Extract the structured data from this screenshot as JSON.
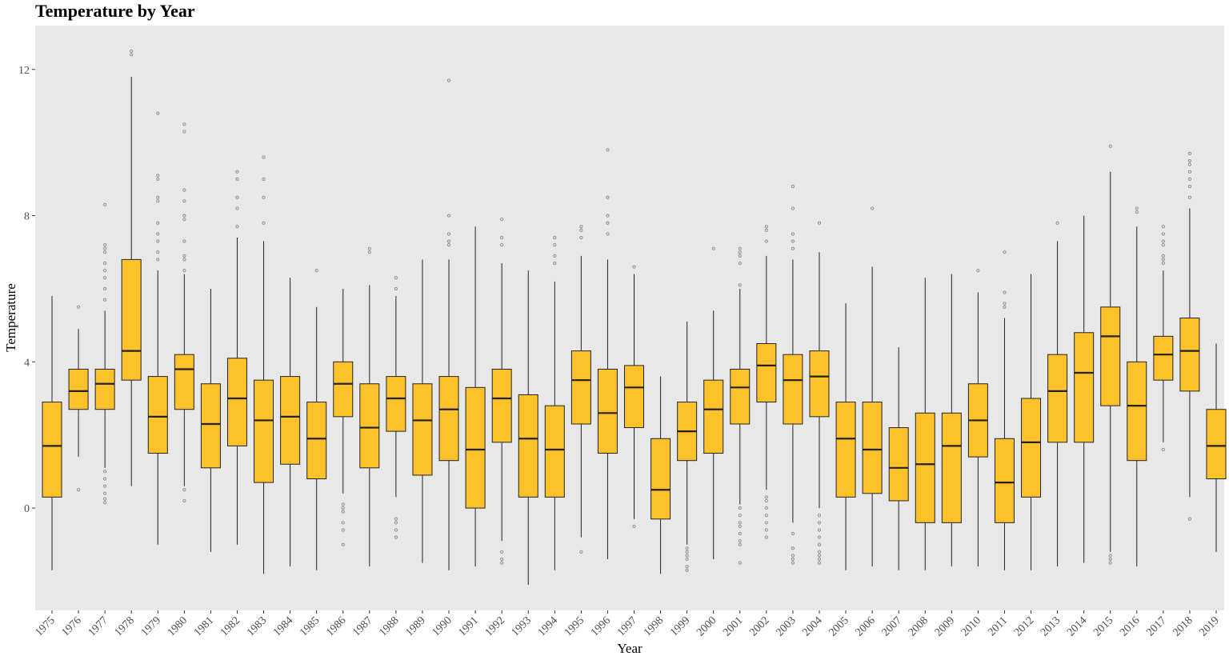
{
  "chart_data": {
    "type": "boxplot",
    "title": "Temperature by Year",
    "xlabel": "Year",
    "ylabel": "Temperature",
    "ylim": [
      -2.8,
      13.2
    ],
    "yticks": [
      0,
      4,
      8,
      12
    ],
    "grid": false,
    "legend": "none",
    "colors": {
      "panel": "#e8e8e8",
      "box_fill": "#fdc12a",
      "box_stroke": "#222222",
      "outlier": "#8f8f8f"
    },
    "categories": [
      "1975",
      "1976",
      "1977",
      "1978",
      "1979",
      "1980",
      "1981",
      "1982",
      "1983",
      "1984",
      "1985",
      "1986",
      "1987",
      "1988",
      "1989",
      "1990",
      "1991",
      "1992",
      "1993",
      "1994",
      "1995",
      "1996",
      "1997",
      "1998",
      "1999",
      "2000",
      "2001",
      "2002",
      "2003",
      "2004",
      "2005",
      "2006",
      "2007",
      "2008",
      "2009",
      "2010",
      "2011",
      "2012",
      "2013",
      "2014",
      "2015",
      "2016",
      "2017",
      "2018",
      "2019"
    ],
    "boxes": [
      {
        "min": -1.7,
        "q1": 0.3,
        "median": 1.7,
        "q3": 2.9,
        "max": 5.8,
        "outliers": []
      },
      {
        "min": 1.4,
        "q1": 2.7,
        "median": 3.2,
        "q3": 3.8,
        "max": 4.9,
        "outliers": [
          0.5,
          5.5
        ]
      },
      {
        "min": 1.1,
        "q1": 2.7,
        "median": 3.4,
        "q3": 3.8,
        "max": 5.4,
        "outliers": [
          0.15,
          0.25,
          0.4,
          0.6,
          0.8,
          1.0,
          5.7,
          6.0,
          6.3,
          6.5,
          6.7,
          7.0,
          7.1,
          7.2,
          8.3
        ]
      },
      {
        "min": 0.6,
        "q1": 3.5,
        "median": 4.3,
        "q3": 6.8,
        "max": 11.8,
        "outliers": [
          12.4,
          12.5
        ]
      },
      {
        "min": -1.0,
        "q1": 1.5,
        "median": 2.5,
        "q3": 3.6,
        "max": 6.5,
        "outliers": [
          6.8,
          7.0,
          7.3,
          7.5,
          7.8,
          8.4,
          8.5,
          9.0,
          9.1,
          10.8
        ]
      },
      {
        "min": 0.6,
        "q1": 2.7,
        "median": 3.8,
        "q3": 4.2,
        "max": 6.4,
        "outliers": [
          0.2,
          0.5,
          6.5,
          6.8,
          6.9,
          7.3,
          7.9,
          8.0,
          8.4,
          8.7,
          10.3,
          10.5
        ]
      },
      {
        "min": -1.2,
        "q1": 1.1,
        "median": 2.3,
        "q3": 3.4,
        "max": 6.0,
        "outliers": []
      },
      {
        "min": -1.0,
        "q1": 1.7,
        "median": 3.0,
        "q3": 4.1,
        "max": 7.4,
        "outliers": [
          7.7,
          8.2,
          8.5,
          9.0,
          9.2
        ]
      },
      {
        "min": -1.8,
        "q1": 0.7,
        "median": 2.4,
        "q3": 3.5,
        "max": 7.3,
        "outliers": [
          7.8,
          8.5,
          9.0,
          9.6
        ]
      },
      {
        "min": -1.6,
        "q1": 1.2,
        "median": 2.5,
        "q3": 3.6,
        "max": 6.3,
        "outliers": []
      },
      {
        "min": -1.7,
        "q1": 0.8,
        "median": 1.9,
        "q3": 2.9,
        "max": 5.5,
        "outliers": [
          6.5
        ]
      },
      {
        "min": 0.4,
        "q1": 2.5,
        "median": 3.4,
        "q3": 4.0,
        "max": 6.0,
        "outliers": [
          -1.0,
          -0.6,
          -0.4,
          -0.1,
          0.0,
          0.1
        ]
      },
      {
        "min": -1.6,
        "q1": 1.1,
        "median": 2.2,
        "q3": 3.4,
        "max": 6.1,
        "outliers": [
          7.0,
          7.1
        ]
      },
      {
        "min": 0.3,
        "q1": 2.1,
        "median": 3.0,
        "q3": 3.6,
        "max": 5.8,
        "outliers": [
          -0.8,
          -0.6,
          -0.4,
          -0.3,
          6.0,
          6.3
        ]
      },
      {
        "min": -1.5,
        "q1": 0.9,
        "median": 2.4,
        "q3": 3.4,
        "max": 6.8,
        "outliers": []
      },
      {
        "min": -1.7,
        "q1": 1.3,
        "median": 2.7,
        "q3": 3.6,
        "max": 6.8,
        "outliers": [
          7.2,
          7.3,
          7.5,
          8.0,
          11.7
        ]
      },
      {
        "min": -1.6,
        "q1": 0.0,
        "median": 1.6,
        "q3": 3.3,
        "max": 7.7,
        "outliers": []
      },
      {
        "min": -0.9,
        "q1": 1.8,
        "median": 3.0,
        "q3": 3.8,
        "max": 6.7,
        "outliers": [
          -1.5,
          -1.4,
          -1.2,
          7.2,
          7.4,
          7.9
        ]
      },
      {
        "min": -2.1,
        "q1": 0.3,
        "median": 1.9,
        "q3": 3.1,
        "max": 6.5,
        "outliers": []
      },
      {
        "min": -1.7,
        "q1": 0.3,
        "median": 1.6,
        "q3": 2.8,
        "max": 6.2,
        "outliers": [
          6.7,
          6.9,
          7.2,
          7.4
        ]
      },
      {
        "min": -0.8,
        "q1": 2.3,
        "median": 3.5,
        "q3": 4.3,
        "max": 6.9,
        "outliers": [
          -1.2,
          7.4,
          7.6,
          7.7
        ]
      },
      {
        "min": -1.4,
        "q1": 1.5,
        "median": 2.6,
        "q3": 3.8,
        "max": 6.8,
        "outliers": [
          7.5,
          7.8,
          8.0,
          8.5,
          9.8
        ]
      },
      {
        "min": -0.3,
        "q1": 2.2,
        "median": 3.3,
        "q3": 3.9,
        "max": 6.4,
        "outliers": [
          -0.5,
          6.6
        ]
      },
      {
        "min": -1.8,
        "q1": -0.3,
        "median": 0.5,
        "q3": 1.9,
        "max": 3.6,
        "outliers": []
      },
      {
        "min": -1.0,
        "q1": 1.3,
        "median": 2.1,
        "q3": 2.9,
        "max": 5.1,
        "outliers": [
          -1.7,
          -1.6,
          -1.4,
          -1.3,
          -1.2,
          -1.1
        ]
      },
      {
        "min": -1.4,
        "q1": 1.5,
        "median": 2.7,
        "q3": 3.5,
        "max": 5.4,
        "outliers": [
          7.1
        ]
      },
      {
        "min": 0.1,
        "q1": 2.3,
        "median": 3.3,
        "q3": 3.8,
        "max": 6.0,
        "outliers": [
          -1.5,
          -1.0,
          -0.9,
          -0.7,
          -0.5,
          -0.4,
          -0.2,
          0.0,
          6.1,
          6.7,
          6.9,
          7.0,
          7.1
        ]
      },
      {
        "min": 0.5,
        "q1": 2.9,
        "median": 3.9,
        "q3": 4.5,
        "max": 6.9,
        "outliers": [
          -0.8,
          -0.6,
          -0.4,
          -0.2,
          0.0,
          0.2,
          0.3,
          7.3,
          7.6,
          7.7
        ]
      },
      {
        "min": -0.4,
        "q1": 2.3,
        "median": 3.5,
        "q3": 4.2,
        "max": 6.8,
        "outliers": [
          -1.5,
          -1.4,
          -1.3,
          -1.1,
          -0.7,
          7.1,
          7.3,
          7.5,
          8.2,
          8.8
        ]
      },
      {
        "min": 0.0,
        "q1": 2.5,
        "median": 3.6,
        "q3": 4.3,
        "max": 7.0,
        "outliers": [
          -1.5,
          -1.4,
          -1.3,
          -1.2,
          -1.0,
          -0.8,
          -0.6,
          -0.4,
          -0.2,
          7.8
        ]
      },
      {
        "min": -1.7,
        "q1": 0.3,
        "median": 1.9,
        "q3": 2.9,
        "max": 5.6,
        "outliers": []
      },
      {
        "min": -1.6,
        "q1": 0.4,
        "median": 1.6,
        "q3": 2.9,
        "max": 6.6,
        "outliers": [
          8.2
        ]
      },
      {
        "min": -1.7,
        "q1": 0.2,
        "median": 1.1,
        "q3": 2.2,
        "max": 4.4,
        "outliers": []
      },
      {
        "min": -1.7,
        "q1": -0.4,
        "median": 1.2,
        "q3": 2.6,
        "max": 6.3,
        "outliers": []
      },
      {
        "min": -1.6,
        "q1": -0.4,
        "median": 1.7,
        "q3": 2.6,
        "max": 6.4,
        "outliers": []
      },
      {
        "min": -1.6,
        "q1": 1.4,
        "median": 2.4,
        "q3": 3.4,
        "max": 5.9,
        "outliers": [
          6.5
        ]
      },
      {
        "min": -1.7,
        "q1": -0.4,
        "median": 0.7,
        "q3": 1.9,
        "max": 5.2,
        "outliers": [
          5.5,
          5.6,
          5.9,
          7.0
        ]
      },
      {
        "min": -1.7,
        "q1": 0.3,
        "median": 1.8,
        "q3": 3.0,
        "max": 6.4,
        "outliers": []
      },
      {
        "min": -1.6,
        "q1": 1.8,
        "median": 3.2,
        "q3": 4.2,
        "max": 7.3,
        "outliers": [
          7.8
        ]
      },
      {
        "min": -1.5,
        "q1": 1.8,
        "median": 3.7,
        "q3": 4.8,
        "max": 8.0,
        "outliers": []
      },
      {
        "min": -1.2,
        "q1": 2.8,
        "median": 4.7,
        "q3": 5.5,
        "max": 9.2,
        "outliers": [
          -1.5,
          -1.4,
          -1.3,
          9.9
        ]
      },
      {
        "min": -1.6,
        "q1": 1.3,
        "median": 2.8,
        "q3": 4.0,
        "max": 7.7,
        "outliers": [
          8.1,
          8.2
        ]
      },
      {
        "min": 1.8,
        "q1": 3.5,
        "median": 4.2,
        "q3": 4.7,
        "max": 6.5,
        "outliers": [
          1.6,
          6.7,
          6.8,
          6.9,
          7.2,
          7.3,
          7.5,
          7.7
        ]
      },
      {
        "min": 0.3,
        "q1": 3.2,
        "median": 4.3,
        "q3": 5.2,
        "max": 8.2,
        "outliers": [
          -0.3,
          8.5,
          8.8,
          9.0,
          9.2,
          9.4,
          9.5,
          9.7
        ]
      },
      {
        "min": -1.2,
        "q1": 0.8,
        "median": 1.7,
        "q3": 2.7,
        "max": 4.5,
        "outliers": []
      }
    ]
  }
}
